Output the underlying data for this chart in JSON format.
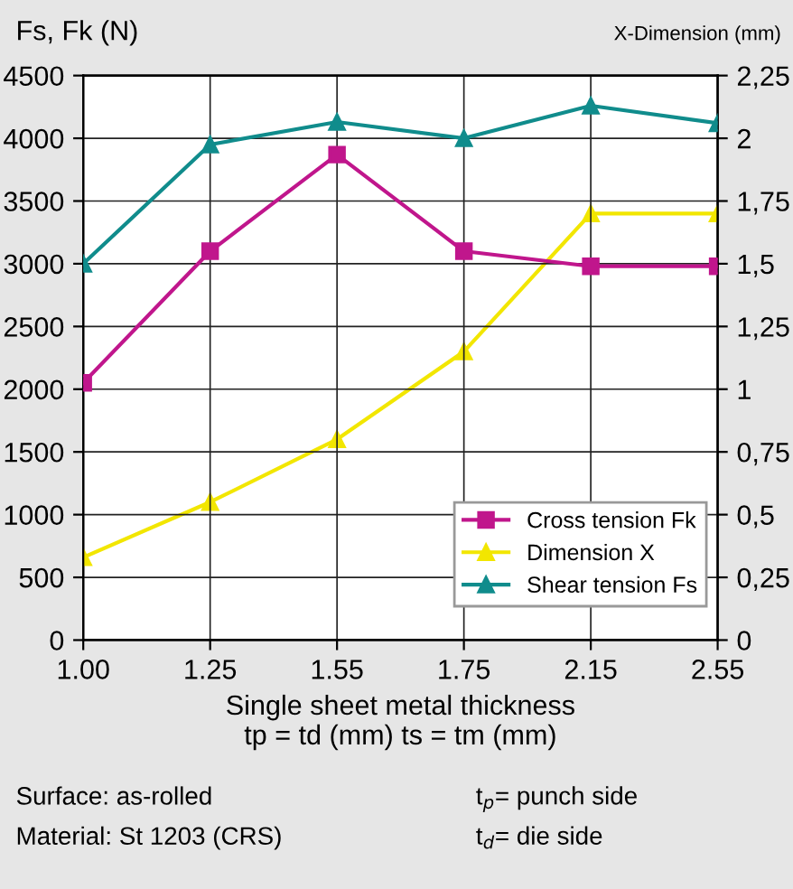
{
  "chart_data": {
    "type": "line",
    "categories": [
      "1.00",
      "1.25",
      "1.55",
      "1.75",
      "2.15",
      "2.55"
    ],
    "series": [
      {
        "name": "Cross tension Fk",
        "color": "#c0168c",
        "marker": "square",
        "values": [
          2050,
          3100,
          3870,
          3100,
          2980,
          2980
        ]
      },
      {
        "name": "Dimension X",
        "color": "#f2e600",
        "marker": "triangle",
        "axis": "y2",
        "values": [
          0.33,
          0.55,
          0.8,
          1.15,
          1.7,
          1.7
        ]
      },
      {
        "name": "Shear tension Fs",
        "color": "#108c8c",
        "marker": "triangle",
        "values": [
          3000,
          3950,
          4130,
          4000,
          4260,
          4120
        ]
      }
    ],
    "ylabel": "Fs, Fk (N)",
    "y2label": "X-Dimension (mm)",
    "xlabel": "Single sheet metal thickness\ntp = td (mm) ts = tm (mm)",
    "ylim": [
      0,
      4500
    ],
    "yticks": [
      0,
      500,
      1000,
      1500,
      2000,
      2500,
      3000,
      3500,
      4000,
      4500
    ],
    "y2lim": [
      0,
      2.25
    ],
    "y2ticks": [
      0,
      {
        "value": 0.25,
        "label": "0,25"
      },
      {
        "value": 0.5,
        "label": "0,5"
      },
      {
        "value": 0.75,
        "label": "0,75"
      },
      1,
      {
        "value": 1.25,
        "label": "1,25"
      },
      {
        "value": 1.5,
        "label": "1,5"
      },
      {
        "value": 1.75,
        "label": "1,75"
      },
      2,
      {
        "value": 2.25,
        "label": "2,25"
      }
    ],
    "grid": true,
    "legend": "bottom right",
    "annotations": [
      "Surface: as-rolled",
      "Material: St 1203 (CRS)",
      "t$_{p}$= punch side",
      "t$_{d}$= die side"
    ]
  }
}
